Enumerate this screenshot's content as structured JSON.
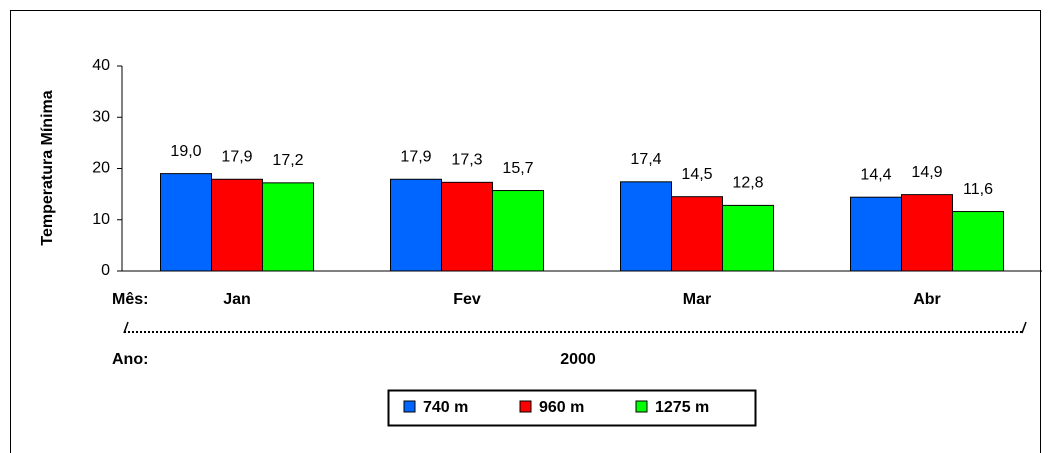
{
  "chart_data": {
    "type": "bar",
    "y_label": "Temperatura Mínima",
    "category_label": "Mês:",
    "group_label": "Ano:",
    "group": "2000",
    "categories": [
      "Jan",
      "Fev",
      "Mar",
      "Abr"
    ],
    "series": [
      {
        "name": "740 m",
        "color": "#0066ff",
        "values": [
          19.0,
          17.9,
          17.4,
          14.4
        ],
        "value_labels": [
          "19,0",
          "17,9",
          "17,4",
          "14,4"
        ]
      },
      {
        "name": "960 m",
        "color": "#ff0000",
        "values": [
          17.9,
          17.3,
          14.5,
          14.9
        ],
        "value_labels": [
          "17,9",
          "17,3",
          "14,5",
          "14,9"
        ]
      },
      {
        "name": "1275 m",
        "color": "#00ff00",
        "values": [
          17.2,
          15.7,
          12.8,
          11.6
        ],
        "value_labels": [
          "17,2",
          "15,7",
          "12,8",
          "11,6"
        ]
      }
    ],
    "ylim": [
      0,
      40
    ],
    "yticks": [
      0,
      10,
      20,
      30,
      40
    ],
    "grid": false
  }
}
